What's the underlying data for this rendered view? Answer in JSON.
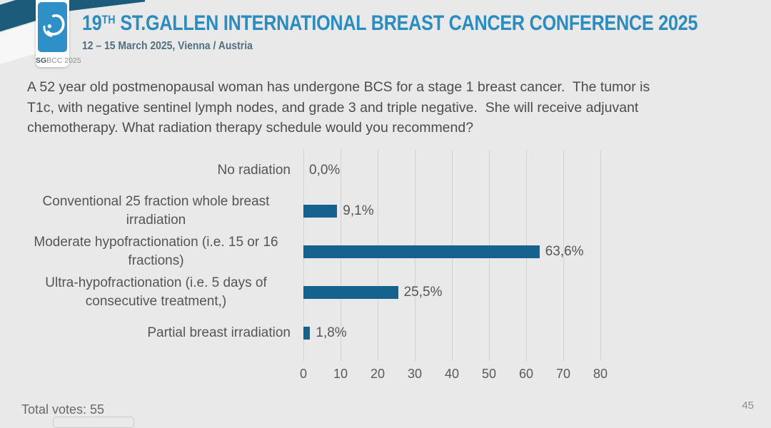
{
  "header": {
    "logo": {
      "acronym_bold": "SG",
      "acronym_rest": "BCC 2025",
      "icon": "breast-logo-icon",
      "square_color": "#2f8fc7",
      "ribbon_color": "#1c5c7a"
    },
    "title_prefix": "19",
    "title_superscript": "TH",
    "title_rest": " ST.GALLEN INTERNATIONAL BREAST CANCER CONFERENCE 2025",
    "title_color": "#2b8cc0",
    "subtitle": "12 – 15 March 2025, Vienna / Austria"
  },
  "question": {
    "lines": [
      "A 52 year old postmenopausal woman has undergone BCS for a stage 1 breast cancer.  The tumor is",
      "T1c, with negative sentinel lymph nodes, and grade 3 and triple negative.  She will receive adjuvant",
      "chemotherapy. What radiation therapy schedule would you recommend?"
    ]
  },
  "chart_data": {
    "type": "bar",
    "orientation": "horizontal",
    "title": "",
    "xlabel": "",
    "ylabel": "",
    "categories": [
      "No radiation",
      "Conventional 25 fraction whole breast irradiation",
      "Moderate hypofractionation (i.e. 15 or 16 fractions)",
      "Ultra-hypofractionation (i.e. 5 days of consecutive treatment,)",
      "Partial breast irradiation"
    ],
    "values": [
      0.0,
      9.1,
      63.6,
      25.5,
      1.8
    ],
    "value_labels": [
      "0,0%",
      "9,1%",
      "63,6%",
      "25,5%",
      "1,8%"
    ],
    "xlim": [
      0,
      80
    ],
    "x_ticks": [
      0,
      10,
      20,
      30,
      40,
      50,
      60,
      70,
      80
    ],
    "grid": true,
    "legend": false,
    "bar_color": "#16628f",
    "gridline_color": "#d2d2d2"
  },
  "footer": {
    "total_votes": "Total votes: 55",
    "page_number": "45"
  }
}
